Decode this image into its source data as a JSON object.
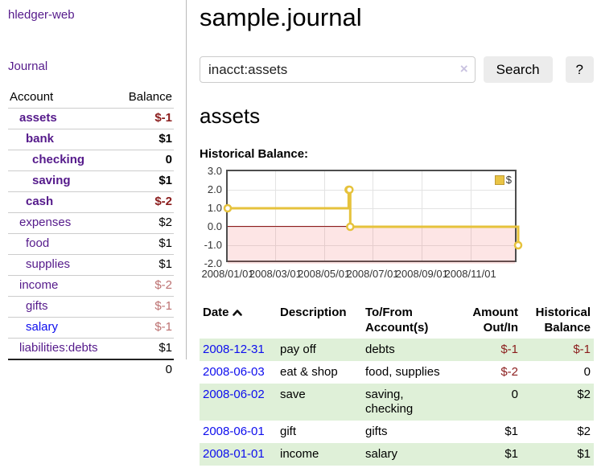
{
  "sidebar": {
    "app_title": "hledger-web",
    "journal_label": "Journal",
    "accounts_table": {
      "header_account": "Account",
      "header_balance": "Balance",
      "rows": [
        {
          "name": "assets",
          "balance": "$-1",
          "depth": 1,
          "bold": true,
          "balance_style": "negative-strong"
        },
        {
          "name": "bank",
          "balance": "$1",
          "depth": 2,
          "bold": true,
          "balance_style": "normal"
        },
        {
          "name": "checking",
          "balance": "0",
          "depth": 3,
          "bold": true,
          "balance_style": "normal"
        },
        {
          "name": "saving",
          "balance": "$1",
          "depth": 3,
          "bold": true,
          "balance_style": "normal"
        },
        {
          "name": "cash",
          "balance": "$-2",
          "depth": 2,
          "bold": true,
          "balance_style": "negative-strong"
        },
        {
          "name": "expenses",
          "balance": "$2",
          "depth": 1,
          "bold": false,
          "balance_style": "normal"
        },
        {
          "name": "food",
          "balance": "$1",
          "depth": 2,
          "bold": false,
          "balance_style": "normal"
        },
        {
          "name": "supplies",
          "balance": "$1",
          "depth": 2,
          "bold": false,
          "balance_style": "normal"
        },
        {
          "name": "income",
          "balance": "$-2",
          "depth": 1,
          "bold": false,
          "balance_style": "negative-soft"
        },
        {
          "name": "gifts",
          "balance": "$-1",
          "depth": 2,
          "bold": false,
          "balance_style": "negative-soft"
        },
        {
          "name": "salary",
          "balance": "$-1",
          "depth": 2,
          "bold": false,
          "balance_style": "negative-soft",
          "link_color": "blue"
        },
        {
          "name": "liabilities:debts",
          "balance": "$1",
          "depth": 1,
          "bold": false,
          "balance_style": "normal"
        }
      ],
      "total": "0"
    }
  },
  "header": {
    "title": "sample.journal"
  },
  "search": {
    "value": "inacct:assets",
    "clear_icon": "×",
    "button_label": "Search",
    "help_label": "?"
  },
  "account_page": {
    "title": "assets",
    "chart_label": "Historical Balance:"
  },
  "chart_data": {
    "type": "line",
    "step": true,
    "series": [
      {
        "name": "$",
        "color": "#e6c23c",
        "points": [
          {
            "x": "2008-01-01",
            "y": 1
          },
          {
            "x": "2008-06-01",
            "y": 2
          },
          {
            "x": "2008-06-02",
            "y": 2
          },
          {
            "x": "2008-06-03",
            "y": 0
          },
          {
            "x": "2008-12-31",
            "y": -1
          }
        ]
      }
    ],
    "x_range": [
      "2008-01-01",
      "2008-12-31"
    ],
    "y_range": [
      -2,
      3
    ],
    "xticks": [
      "2008/01/01",
      "2008/03/01",
      "2008/05/01",
      "2008/07/01",
      "2008/09/01",
      "2008/11/01"
    ],
    "yticks": [
      "3.0",
      "2.0",
      "1.0",
      "0.0",
      "-1.0",
      "-2.0"
    ],
    "grid": true,
    "legend_position": "top-right",
    "negative_region": true
  },
  "transactions_table": {
    "headers": {
      "date": "Date",
      "sort_indicator": "chevron-up",
      "description": "Description",
      "accounts": "To/From Account(s)",
      "amount": "Amount Out/In",
      "balance": "Historical Balance"
    },
    "rows": [
      {
        "date": "2008-12-31",
        "description": "pay off",
        "accounts": "debts",
        "amount": "$-1",
        "balance": "$-1"
      },
      {
        "date": "2008-06-03",
        "description": "eat & shop",
        "accounts": "food, supplies",
        "amount": "$-2",
        "balance": "0"
      },
      {
        "date": "2008-06-02",
        "description": "save",
        "accounts": "saving, checking",
        "amount": "0",
        "balance": "$2"
      },
      {
        "date": "2008-06-01",
        "description": "gift",
        "accounts": "gifts",
        "amount": "$1",
        "balance": "$2"
      },
      {
        "date": "2008-01-01",
        "description": "income",
        "accounts": "salary",
        "amount": "$1",
        "balance": "$1"
      }
    ]
  },
  "colors": {
    "link_purple": "#551a8b",
    "link_blue": "#0d0dee",
    "negative_strong": "#8b1d1d",
    "negative_soft": "#bc7070",
    "row_highlight_green": "#dff0d8",
    "button_gray": "#ececec",
    "chart_series_yellow": "#e6c23c",
    "chart_negative_fill": "#fadada",
    "chart_zero_line": "#8f1a1a",
    "chart_border": "#4d4d4d"
  }
}
